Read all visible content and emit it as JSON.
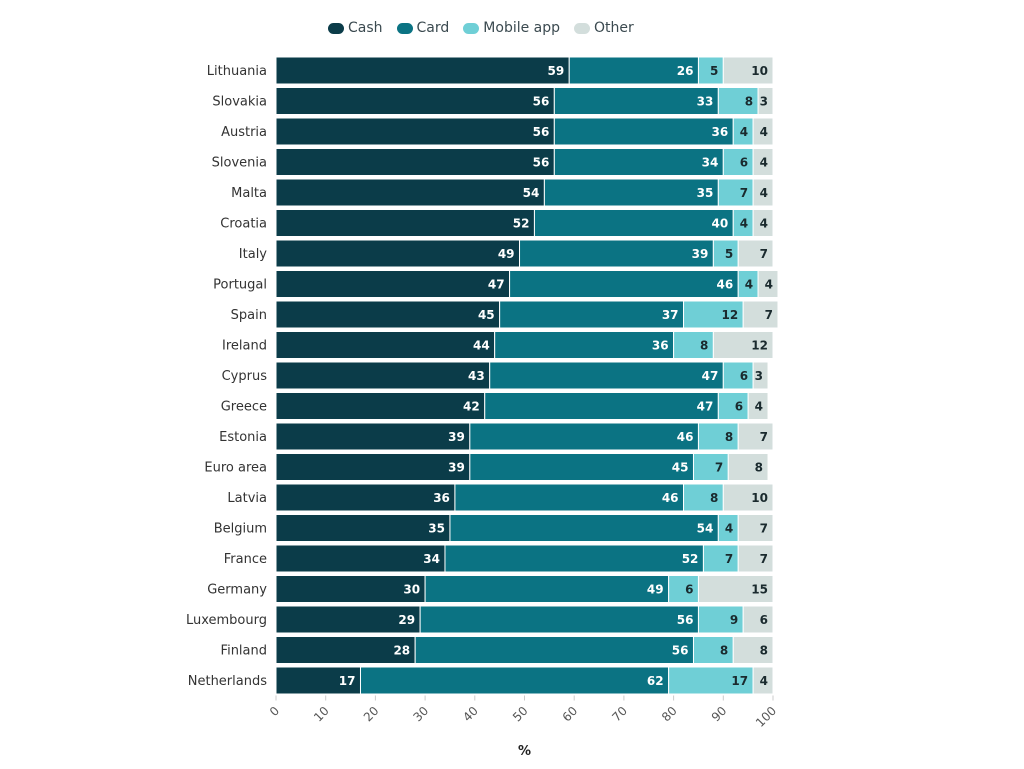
{
  "chart_data": {
    "type": "bar",
    "orientation": "horizontal",
    "stacked": true,
    "title": "",
    "xlabel": "%",
    "ylabel": "",
    "xlim": [
      0,
      100
    ],
    "xticks": [
      "0",
      "10",
      "20",
      "30",
      "40",
      "50",
      "60",
      "70",
      "80",
      "90",
      "100"
    ],
    "grid": false,
    "legend_position": "top-center",
    "categories": [
      "Lithuania",
      "Slovakia",
      "Austria",
      "Slovenia",
      "Malta",
      "Croatia",
      "Italy",
      "Portugal",
      "Spain",
      "Ireland",
      "Cyprus",
      "Greece",
      "Estonia",
      "Euro area",
      "Latvia",
      "Belgium",
      "France",
      "Germany",
      "Luxembourg",
      "Finland",
      "Netherlands"
    ],
    "series": [
      {
        "name": "Cash",
        "color": "#0b3c49",
        "label_color": "#ffffff",
        "values": [
          59,
          56,
          56,
          56,
          54,
          52,
          49,
          47,
          45,
          44,
          43,
          42,
          39,
          39,
          36,
          35,
          34,
          30,
          29,
          28,
          17
        ]
      },
      {
        "name": "Card",
        "color": "#0b7383",
        "label_color": "#ffffff",
        "values": [
          26,
          33,
          36,
          34,
          35,
          40,
          39,
          46,
          37,
          36,
          47,
          47,
          46,
          45,
          46,
          54,
          52,
          49,
          56,
          56,
          62
        ]
      },
      {
        "name": "Mobile app",
        "color": "#6fcfd6",
        "label_color": "#1a2a2e",
        "values": [
          5,
          8,
          4,
          6,
          7,
          4,
          5,
          4,
          12,
          8,
          6,
          6,
          8,
          7,
          8,
          4,
          7,
          6,
          9,
          8,
          17
        ]
      },
      {
        "name": "Other",
        "color": "#d3dedc",
        "label_color": "#1a2a2e",
        "values": [
          10,
          3,
          4,
          4,
          4,
          4,
          7,
          4,
          7,
          12,
          3,
          4,
          7,
          8,
          10,
          7,
          7,
          15,
          6,
          8,
          4
        ]
      }
    ]
  }
}
